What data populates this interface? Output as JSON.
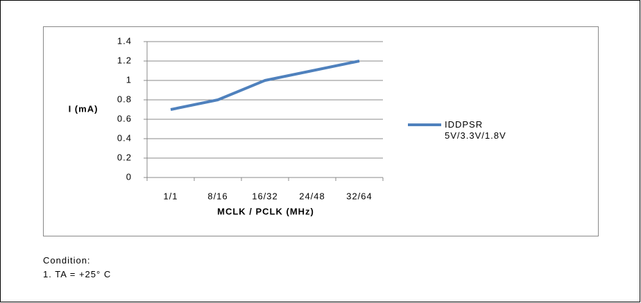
{
  "chart_data": {
    "type": "line",
    "y_label": "I (mA)",
    "x_label": "MCLK / PCLK (MHz)",
    "categories": [
      "1/1",
      "8/16",
      "16/32",
      "24/48",
      "32/64"
    ],
    "series": [
      {
        "name": "IDDPSR 5V/3.3V/1.8V",
        "color": "#4f81bd",
        "values": [
          0.7,
          0.8,
          1.0,
          1.1,
          1.2
        ]
      }
    ],
    "ylim": [
      0,
      1.4
    ],
    "yticks": [
      0,
      0.2,
      0.4,
      0.6,
      0.8,
      1,
      1.2,
      1.4
    ],
    "grid": true,
    "legend": "right"
  },
  "notes": {
    "heading": "Condition:",
    "items": [
      "1. TA = +25° C"
    ]
  }
}
